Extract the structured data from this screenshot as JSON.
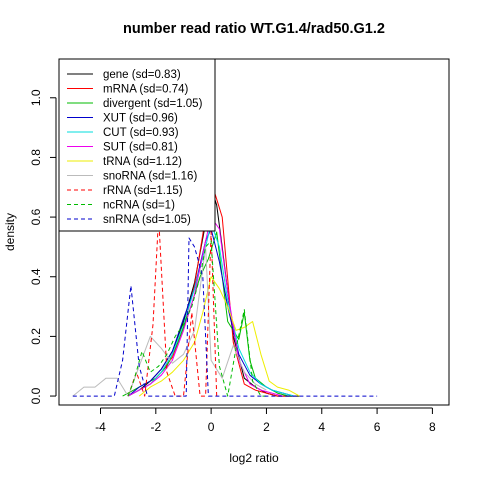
{
  "chart_data": {
    "type": "line",
    "title": "number read ratio WT.G1.4/rad50.G1.2",
    "xlabel": "log2 ratio",
    "ylabel": "density",
    "xlim": [
      -5.5,
      8.6
    ],
    "ylim": [
      -0.03,
      1.13
    ],
    "xticks": [
      -4,
      -2,
      0,
      2,
      4,
      6,
      8
    ],
    "yticks": [
      0.0,
      0.2,
      0.4,
      0.6,
      0.8,
      1.0
    ],
    "xtick_labels": [
      "-4",
      "-2",
      "0",
      "2",
      "4",
      "6",
      "8"
    ],
    "ytick_labels": [
      "0.0",
      "0.2",
      "0.4",
      "0.6",
      "0.8",
      "1.0"
    ],
    "legend_position": "top-left",
    "series": [
      {
        "name": "gene (sd=0.83)",
        "color": "#000000",
        "dash": "solid",
        "x": [
          -3,
          -2.6,
          -2.2,
          -1.8,
          -1.4,
          -1.0,
          -0.6,
          -0.2,
          0.0,
          0.2,
          0.4,
          0.8,
          1.2,
          1.6,
          2.0,
          2.4,
          2.8,
          3.2
        ],
        "y": [
          0.0,
          0.02,
          0.05,
          0.09,
          0.15,
          0.25,
          0.38,
          0.58,
          0.7,
          0.64,
          0.5,
          0.2,
          0.06,
          0.03,
          0.01,
          0.0,
          0.0,
          0.0
        ]
      },
      {
        "name": "mRNA (sd=0.74)",
        "color": "#ff0000",
        "dash": "solid",
        "x": [
          -3,
          -2.6,
          -2.2,
          -1.8,
          -1.4,
          -1.0,
          -0.6,
          -0.2,
          0.0,
          0.2,
          0.4,
          0.8,
          1.2,
          1.6,
          2.0,
          2.4,
          2.8
        ],
        "y": [
          0.0,
          0.02,
          0.04,
          0.08,
          0.13,
          0.23,
          0.37,
          0.6,
          0.72,
          0.66,
          0.6,
          0.18,
          0.04,
          0.02,
          0.01,
          0.0,
          0.0
        ]
      },
      {
        "name": "divergent (sd=1.05)",
        "color": "#00bb00",
        "dash": "solid",
        "x": [
          -3.2,
          -2.8,
          -2.4,
          -2.0,
          -1.6,
          -1.2,
          -0.8,
          -0.4,
          -0.1,
          0.2,
          0.6,
          1.0,
          1.2,
          1.4,
          1.6,
          2.0,
          2.4,
          2.8
        ],
        "y": [
          0.0,
          0.02,
          0.04,
          0.06,
          0.1,
          0.18,
          0.28,
          0.4,
          0.46,
          0.55,
          0.25,
          0.19,
          0.28,
          0.12,
          0.06,
          0.03,
          0.01,
          0.0
        ]
      },
      {
        "name": "XUT (sd=0.96)",
        "color": "#0000cc",
        "dash": "solid",
        "x": [
          -3,
          -2.6,
          -2.2,
          -1.8,
          -1.4,
          -1.0,
          -0.6,
          -0.2,
          0.0,
          0.3,
          0.6,
          1.0,
          1.4,
          1.8,
          2.2,
          2.6,
          3.0
        ],
        "y": [
          0.0,
          0.03,
          0.05,
          0.09,
          0.15,
          0.26,
          0.36,
          0.52,
          0.56,
          0.45,
          0.3,
          0.14,
          0.07,
          0.04,
          0.02,
          0.01,
          0.0
        ]
      },
      {
        "name": "CUT (sd=0.93)",
        "color": "#00dddd",
        "dash": "solid",
        "x": [
          -3,
          -2.6,
          -2.2,
          -1.8,
          -1.4,
          -1.0,
          -0.6,
          -0.2,
          0.0,
          0.3,
          0.6,
          1.0,
          1.4,
          1.8,
          2.2,
          2.6,
          3.0
        ],
        "y": [
          0.0,
          0.02,
          0.04,
          0.08,
          0.14,
          0.24,
          0.36,
          0.5,
          0.58,
          0.5,
          0.32,
          0.16,
          0.08,
          0.04,
          0.02,
          0.01,
          0.0
        ]
      },
      {
        "name": "SUT (sd=0.81)",
        "color": "#ee00ee",
        "dash": "solid",
        "x": [
          -3,
          -2.6,
          -2.2,
          -1.8,
          -1.4,
          -1.0,
          -0.6,
          -0.2,
          0.0,
          0.3,
          0.6,
          1.0,
          1.4,
          1.8,
          2.2,
          2.6
        ],
        "y": [
          0.0,
          0.02,
          0.04,
          0.07,
          0.12,
          0.22,
          0.34,
          0.52,
          0.6,
          0.56,
          0.35,
          0.12,
          0.04,
          0.02,
          0.01,
          0.0
        ]
      },
      {
        "name": "tRNA (sd=1.12)",
        "color": "#eeee00",
        "dash": "solid",
        "x": [
          -2.6,
          -2.2,
          -1.8,
          -1.4,
          -1.0,
          -0.6,
          -0.3,
          0.0,
          0.3,
          0.6,
          0.9,
          1.2,
          1.5,
          1.8,
          2.1,
          2.4,
          2.8,
          3.2
        ],
        "y": [
          0.0,
          0.03,
          0.05,
          0.08,
          0.12,
          0.18,
          0.28,
          0.4,
          0.36,
          0.3,
          0.22,
          0.23,
          0.25,
          0.14,
          0.05,
          0.03,
          0.02,
          0.0
        ]
      },
      {
        "name": "snoRNA (sd=1.16)",
        "color": "#bbbbbb",
        "dash": "solid",
        "x": [
          -5,
          -4.6,
          -4.2,
          -3.8,
          -3.4,
          -3.0,
          -2.6,
          -2.2,
          -1.8,
          -1.4,
          -1.0,
          -0.6,
          -0.2,
          0.0,
          0.4,
          0.8,
          1.2,
          1.6,
          2.0
        ],
        "y": [
          0.0,
          0.03,
          0.03,
          0.06,
          0.06,
          0.0,
          0.1,
          0.2,
          0.16,
          0.11,
          0.14,
          0.22,
          0.5,
          0.12,
          0.06,
          0.17,
          0.08,
          0.04,
          0.02
        ]
      },
      {
        "name": "rRNA (sd=1.15)",
        "color": "#ff0000",
        "dash": "dashed",
        "x": [
          -3.0,
          -2.7,
          -2.4,
          -2.1,
          -1.9,
          -1.6,
          -1.3,
          -1.0,
          -0.7,
          -0.4,
          -0.2,
          0.0,
          0.2
        ],
        "y": [
          0.0,
          0.08,
          0.0,
          0.24,
          0.6,
          0.08,
          0.0,
          0.0,
          0.28,
          0.0,
          0.0,
          0.55,
          0.0
        ]
      },
      {
        "name": "ncRNA (sd=1)",
        "color": "#00bb00",
        "dash": "dashed",
        "x": [
          -3.0,
          -2.8,
          -2.5,
          -2.2,
          -1.9,
          -1.6,
          -1.3,
          -1.0,
          -0.7,
          -0.4,
          -0.2,
          0.0,
          0.3,
          0.6,
          0.9,
          1.2,
          1.5,
          1.8,
          2.0
        ],
        "y": [
          0.0,
          0.05,
          0.15,
          0.08,
          0.1,
          0.14,
          0.2,
          0.24,
          0.3,
          0.4,
          0.5,
          0.52,
          0.1,
          0.0,
          0.16,
          0.29,
          0.05,
          0.0,
          0.0
        ]
      },
      {
        "name": "snRNA (sd=1.05)",
        "color": "#0000cc",
        "dash": "dashed",
        "x": [
          -5.0,
          -3.5,
          -3.2,
          -2.9,
          -2.6,
          -2.3,
          -2.0,
          -1.7,
          -1.4,
          -1.1,
          -0.9,
          -0.8,
          -0.6,
          -0.3,
          -0.1,
          0.1,
          0.4,
          6.0
        ],
        "y": [
          0.0,
          0.0,
          0.12,
          0.37,
          0.1,
          0.0,
          0.0,
          0.0,
          0.0,
          0.0,
          0.0,
          0.53,
          0.5,
          0.4,
          0.0,
          0.0,
          0.0,
          0.0
        ]
      }
    ]
  }
}
